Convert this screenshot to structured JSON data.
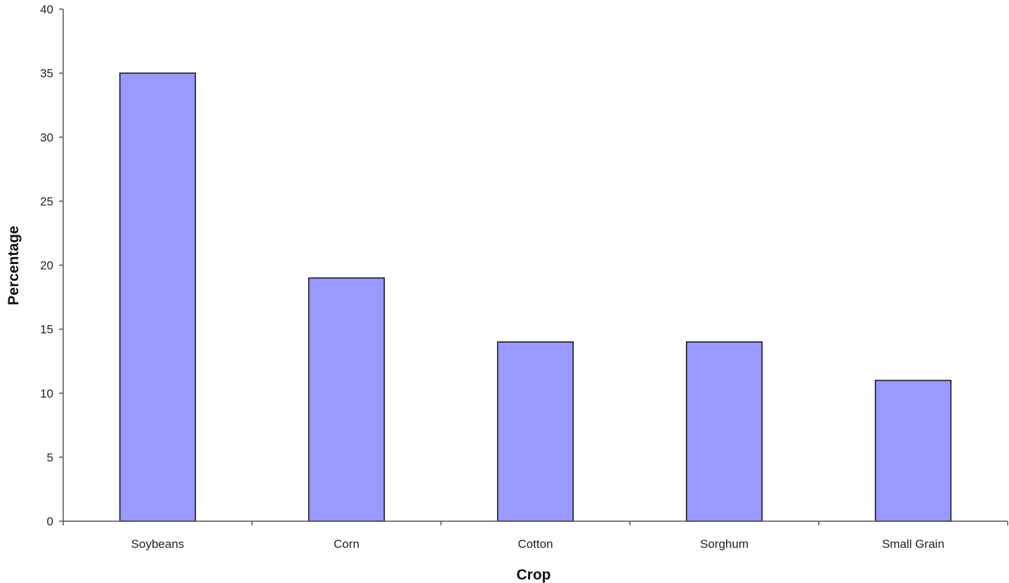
{
  "chart_data": {
    "type": "bar",
    "categories": [
      "Soybeans",
      "Corn",
      "Cotton",
      "Sorghum",
      "Small Grain"
    ],
    "values": [
      35,
      19,
      14,
      14,
      11
    ],
    "title": "",
    "xlabel": "Crop",
    "ylabel": "Percentage",
    "ylim": [
      0,
      40
    ],
    "yticks": [
      0,
      5,
      10,
      15,
      20,
      25,
      30,
      35,
      40
    ],
    "grid": false,
    "legend": "none",
    "bar_color": "#9999ff",
    "bar_stroke": "#1a1a1a",
    "axis_color": "#555555"
  }
}
